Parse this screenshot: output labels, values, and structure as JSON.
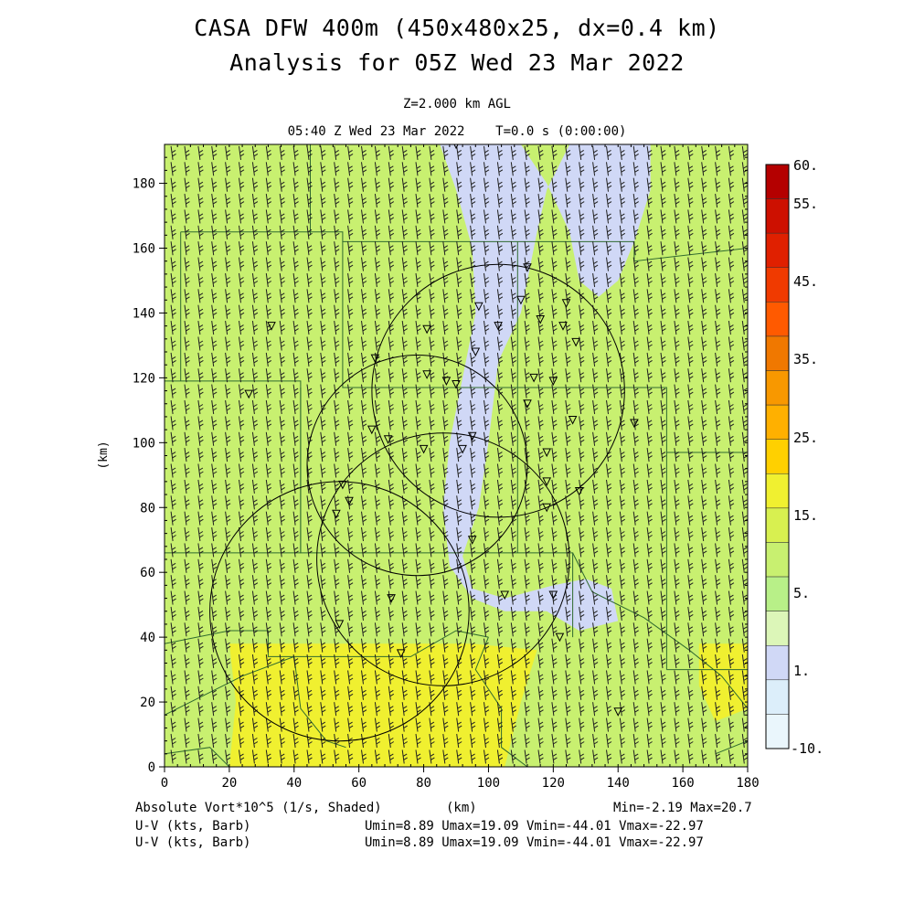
{
  "titles": {
    "line1": "CASA DFW 400m (450x480x25, dx=0.4 km)",
    "line2": "Analysis for 05Z Wed 23 Mar 2022",
    "level": "Z=2.000 km AGL",
    "time": "05:40 Z Wed 23 Mar 2022    T=0.0 s (0:00:00)"
  },
  "footer": {
    "field_label": "Absolute Vort*10^5 (1/s, Shaded)",
    "units": "(km)",
    "minmax": "Min=-2.19 Max=20.7",
    "barb1_label": "U-V (kts, Barb)",
    "barb1_stats": "Umin=8.89 Umax=19.09 Vmin=-44.01 Vmax=-22.97",
    "barb2_label": "U-V (kts, Barb)",
    "barb2_stats": "Umin=8.89 Umax=19.09 Vmin=-44.01 Vmax=-22.97"
  },
  "colorbar": {
    "labels": [
      "60.",
      "55.",
      "45.",
      "35.",
      "25.",
      "15.",
      "5.",
      "1.",
      "-10."
    ],
    "colors": [
      "#b40000",
      "#cd1000",
      "#e02000",
      "#f03a00",
      "#ff5a00",
      "#f07800",
      "#f89800",
      "#ffb000",
      "#ffd000",
      "#f0f030",
      "#d8f050",
      "#c8f070",
      "#b8f088",
      "#dcf6b8",
      "#d0d8f6",
      "#dceefa",
      "#eaf6fc"
    ]
  },
  "chart_data": {
    "type": "heatmap",
    "field": "Absolute Vort*10^5 (1/s, Shaded)",
    "ylabel": "(km)",
    "xlabel": "(km)",
    "xlim": [
      0,
      180
    ],
    "ylim": [
      0,
      192
    ],
    "xticks": [
      0,
      20,
      40,
      60,
      80,
      100,
      120,
      140,
      160,
      180
    ],
    "yticks": [
      0,
      20,
      40,
      60,
      80,
      100,
      120,
      140,
      160,
      180
    ],
    "min": -2.19,
    "max": 20.7,
    "regions": [
      {
        "level": "1 to 3",
        "color": "#d0d8f6",
        "polygon": [
          [
            85,
            192
          ],
          [
            110,
            192
          ],
          [
            118,
            180
          ],
          [
            125,
            165
          ],
          [
            128,
            150
          ],
          [
            134,
            145
          ],
          [
            140,
            150
          ],
          [
            145,
            162
          ],
          [
            150,
            178
          ],
          [
            150,
            192
          ],
          [
            125,
            192
          ],
          [
            118,
            178
          ],
          [
            115,
            165
          ],
          [
            110,
            140
          ],
          [
            103,
            125
          ],
          [
            100,
            100
          ],
          [
            97,
            80
          ],
          [
            92,
            65
          ],
          [
            95,
            55
          ],
          [
            105,
            52
          ],
          [
            120,
            56
          ],
          [
            130,
            58
          ],
          [
            138,
            55
          ],
          [
            140,
            45
          ],
          [
            128,
            42
          ],
          [
            118,
            48
          ],
          [
            105,
            48
          ],
          [
            95,
            52
          ],
          [
            88,
            62
          ],
          [
            86,
            80
          ],
          [
            88,
            100
          ],
          [
            92,
            120
          ],
          [
            96,
            140
          ],
          [
            95,
            160
          ],
          [
            90,
            178
          ]
        ]
      },
      {
        "level": "15 to 20",
        "color": "#f0f030",
        "polygon": [
          [
            20,
            38
          ],
          [
            95,
            38
          ],
          [
            115,
            36
          ],
          [
            110,
            20
          ],
          [
            105,
            0
          ],
          [
            20,
            0
          ],
          [
            22,
            20
          ]
        ]
      },
      {
        "level": "15 to 20",
        "color": "#f0f030",
        "polygon": [
          [
            165,
            38
          ],
          [
            180,
            38
          ],
          [
            180,
            18
          ],
          [
            170,
            14
          ],
          [
            165,
            25
          ]
        ]
      }
    ],
    "radar_rings": [
      {
        "cx": 54,
        "cy": 48,
        "r": 40
      },
      {
        "cx": 86,
        "cy": 64,
        "r": 39
      },
      {
        "cx": 78,
        "cy": 93,
        "r": 34
      },
      {
        "cx": 103,
        "cy": 116,
        "r": 39
      }
    ],
    "wind_u_range_kts": [
      8.89,
      19.09
    ],
    "wind_v_range_kts": [
      -44.01,
      -22.97
    ]
  }
}
